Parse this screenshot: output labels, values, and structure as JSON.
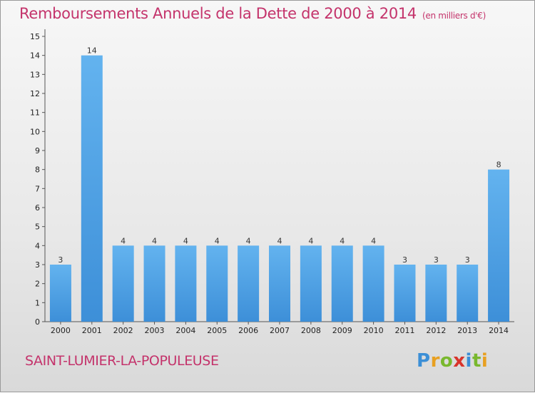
{
  "title": "Remboursements Annuels de la Dette de 2000 à 2014",
  "subtitle": "(en milliers d'€)",
  "commune": "SAINT-LUMIER-LA-POPULEUSE",
  "brand": {
    "letters": [
      "P",
      "r",
      "o",
      "x",
      "i",
      "t",
      "i"
    ],
    "colors": [
      "#3c8fd6",
      "#e8a021",
      "#79b82e",
      "#d8342b",
      "#3c8fd6",
      "#79b82e",
      "#e8a021"
    ]
  },
  "colors": {
    "bar": "#3d8fd8",
    "bar_light": "#63b3ef",
    "title": "#c4336b"
  },
  "chart_data": {
    "type": "bar",
    "categories": [
      "2000",
      "2001",
      "2002",
      "2003",
      "2004",
      "2005",
      "2006",
      "2007",
      "2008",
      "2009",
      "2010",
      "2011",
      "2012",
      "2013",
      "2014"
    ],
    "values": [
      3,
      14,
      4,
      4,
      4,
      4,
      4,
      4,
      4,
      4,
      4,
      3,
      3,
      3,
      8
    ],
    "ylim": [
      0,
      15
    ],
    "yticks": [
      "0",
      "1",
      "2",
      "3",
      "4",
      "5",
      "6",
      "7",
      "8",
      "9",
      "10",
      "11",
      "12",
      "13",
      "14",
      "15"
    ],
    "grid": false,
    "legend": "none",
    "xlabel": "",
    "ylabel": ""
  }
}
